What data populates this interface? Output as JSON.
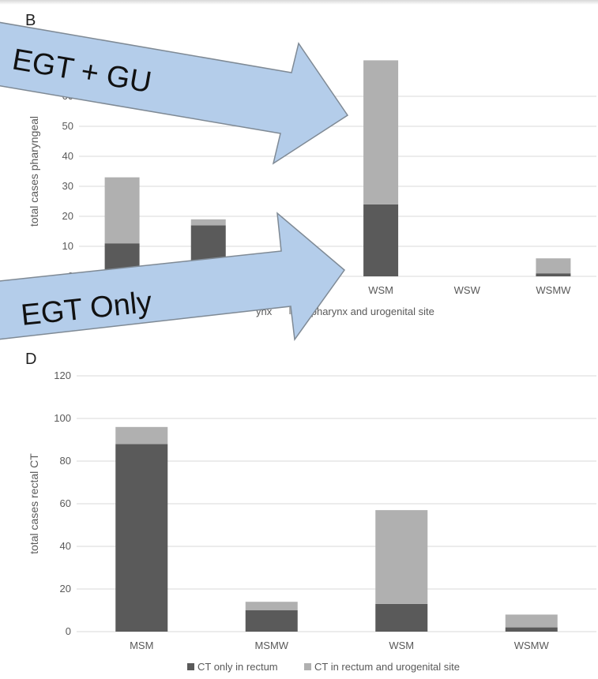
{
  "colors": {
    "dark_series": "#5a5a5a",
    "light_series": "#b0b0b0",
    "grid": "#d9d9d9",
    "axis_text": "#595959",
    "arrow_fill": "#b4cdea",
    "arrow_stroke": "#7f8a95"
  },
  "annotations": {
    "arrow_top": "EGT + GU",
    "arrow_bottom": "EGT Only"
  },
  "chart_data": [
    {
      "panel_label": "B",
      "type": "bar",
      "stacked": true,
      "ylabel": "total cases pharyngeal",
      "ylim": [
        0,
        70
      ],
      "yticks": [
        0,
        10,
        20,
        30,
        40,
        50,
        60
      ],
      "categories": [
        "",
        "",
        "",
        "WSM",
        "WSW",
        "WSMW"
      ],
      "series": [
        {
          "values": [
            11,
            17,
            0,
            24,
            0,
            1
          ]
        },
        {
          "values": [
            22,
            2,
            0,
            48,
            0,
            5
          ]
        }
      ],
      "legend_visible": [
        "ynx",
        "in pharynx and urogenital site"
      ],
      "grid": true
    },
    {
      "panel_label": "D",
      "type": "bar",
      "stacked": true,
      "ylabel": "total cases rectal CT",
      "ylim": [
        0,
        120
      ],
      "yticks": [
        0,
        20,
        40,
        60,
        80,
        100,
        120
      ],
      "categories": [
        "MSM",
        "MSMW",
        "WSM",
        "WSMW"
      ],
      "series": [
        {
          "name": "CT only in rectum",
          "values": [
            88,
            10,
            13,
            2
          ]
        },
        {
          "name": "CT in rectum and urogenital site",
          "values": [
            8,
            4,
            44,
            6
          ]
        }
      ],
      "legend_position": "bottom",
      "grid": true
    }
  ]
}
